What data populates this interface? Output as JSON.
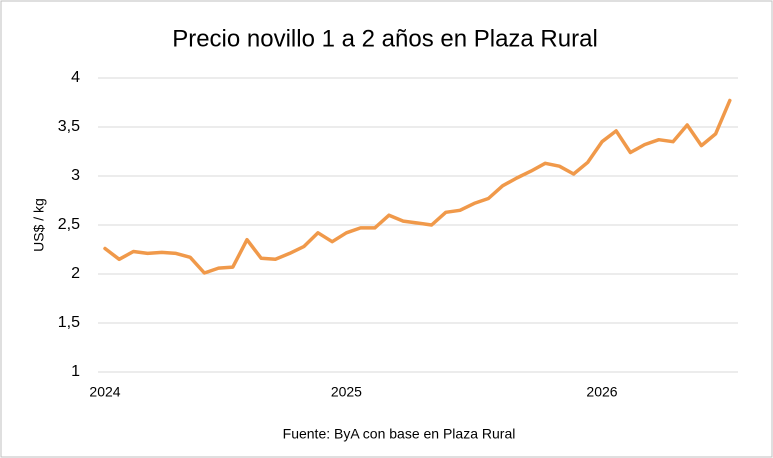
{
  "chart_data": {
    "type": "line",
    "title": "Precio novillo 1 a 2 años en Plaza Rural",
    "y_label": "US$ / kg",
    "source": "Fuente: ByA con base en Plaza Rural",
    "categories": [
      "2024",
      null,
      null,
      null,
      null,
      null,
      null,
      null,
      null,
      null,
      null,
      null,
      null,
      null,
      null,
      null,
      null,
      "2025",
      null,
      null,
      null,
      null,
      null,
      null,
      null,
      null,
      null,
      null,
      null,
      null,
      null,
      null,
      null,
      null,
      null,
      "2026",
      null,
      null,
      null,
      null,
      null,
      null,
      null,
      null,
      null
    ],
    "values": [
      2.26,
      2.15,
      2.23,
      2.21,
      2.22,
      2.21,
      2.17,
      2.01,
      2.06,
      2.07,
      2.35,
      2.16,
      2.15,
      2.21,
      2.28,
      2.42,
      2.33,
      2.42,
      2.47,
      2.47,
      2.6,
      2.54,
      2.52,
      2.5,
      2.63,
      2.65,
      2.72,
      2.77,
      2.9,
      2.98,
      3.05,
      3.13,
      3.1,
      3.02,
      3.14,
      3.35,
      3.46,
      3.24,
      3.32,
      3.37,
      3.35,
      3.52,
      3.31,
      3.43,
      3.77
    ],
    "color": "#f0994a",
    "ylim": [
      1,
      4
    ],
    "yticks": [
      1,
      {
        "value": 1.5,
        "label": "1,5"
      },
      2,
      {
        "value": 2.5,
        "label": "2,5"
      },
      3,
      {
        "value": 3.5,
        "label": "3,5"
      },
      4
    ],
    "grid": true
  }
}
